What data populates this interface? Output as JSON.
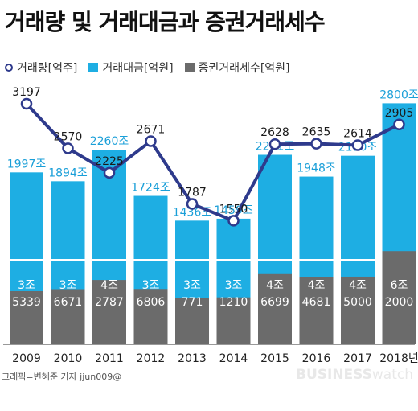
{
  "title": "거래량 및 거래대금과 증권거래세수",
  "legend": {
    "volume": "거래량[억주]",
    "amount": "거래대금[억원]",
    "tax": "증권거래세수[억원]"
  },
  "colors": {
    "volume_line": "#2e3a8c",
    "amount_bar": "#1eaee3",
    "tax_bar": "#6b6b6b",
    "label_blue": "#1a9fd8"
  },
  "footer": {
    "credit": "그래픽=변혜준 기자 jjun009@",
    "brand_bold": "BUSINESS",
    "brand_light": "watch"
  },
  "chart_data": {
    "type": "bar",
    "categories": [
      "2009",
      "2010",
      "2011",
      "2012",
      "2013",
      "2014",
      "2015",
      "2016",
      "2017",
      "2018년"
    ],
    "series": [
      {
        "name": "거래량[억주]",
        "kind": "line",
        "values": [
          3197,
          2570,
          2225,
          2671,
          1787,
          1550,
          2628,
          2635,
          2614,
          2905
        ]
      },
      {
        "name": "거래대금[억원]",
        "kind": "bar",
        "values": [
          1997,
          1894,
          2260,
          1724,
          1436,
          1459,
          2201,
          1948,
          2190,
          2800
        ],
        "value_labels": [
          "1997조",
          "1894조",
          "2260조",
          "1724조",
          "1436조",
          "1459조",
          "2201조",
          "1948조",
          "2190조",
          "2800조"
        ]
      },
      {
        "name": "증권거래세수[억원]",
        "kind": "bar",
        "values": [
          35339,
          36671,
          42787,
          36806,
          30771,
          31210,
          46699,
          44681,
          45000,
          62000
        ],
        "value_labels": [
          [
            "3조",
            "5339"
          ],
          [
            "3조",
            "6671"
          ],
          [
            "4조",
            "2787"
          ],
          [
            "3조",
            "6806"
          ],
          [
            "3조",
            "771"
          ],
          [
            "3조",
            "1210"
          ],
          [
            "4조",
            "6699"
          ],
          [
            "4조",
            "4681"
          ],
          [
            "4조",
            "5000"
          ],
          [
            "6조",
            "2000"
          ]
        ]
      }
    ]
  }
}
